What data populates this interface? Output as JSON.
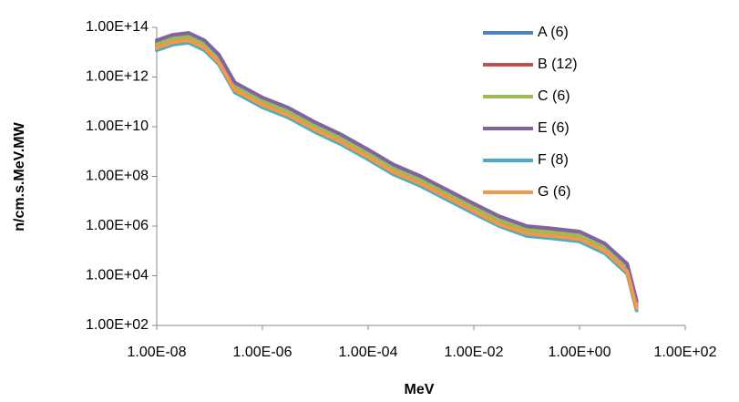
{
  "chart_data": {
    "type": "line",
    "x_label": "MeV",
    "y_label": "n/cm.s.MeV.MW",
    "x_scale": "log",
    "y_scale": "log",
    "grid": false,
    "legend": "right",
    "xlim": [
      1e-08,
      100
    ],
    "ylim": [
      100,
      100000000000000.0
    ],
    "xticks": [
      {
        "value": 1e-08,
        "label": "1.00E-08"
      },
      {
        "value": 1e-06,
        "label": "1.00E-06"
      },
      {
        "value": 0.0001,
        "label": "1.00E-04"
      },
      {
        "value": 0.01,
        "label": "1.00E-02"
      },
      {
        "value": 1,
        "label": "1.00E+00"
      },
      {
        "value": 100,
        "label": "1.00E+02"
      }
    ],
    "yticks": [
      {
        "value": 100,
        "label": "1.00E+02"
      },
      {
        "value": 10000.0,
        "label": "1.00E+04"
      },
      {
        "value": 1000000.0,
        "label": "1.00E+06"
      },
      {
        "value": 100000000.0,
        "label": "1.00E+08"
      },
      {
        "value": 10000000000.0,
        "label": "1.00E+10"
      },
      {
        "value": 1000000000000.0,
        "label": "1.00E+12"
      },
      {
        "value": 100000000000000.0,
        "label": "1.00E+14"
      }
    ],
    "x": [
      1e-08,
      2e-08,
      4e-08,
      8e-08,
      1.5e-07,
      3e-07,
      1e-06,
      3e-06,
      1e-05,
      3e-05,
      0.0001,
      0.0003,
      0.001,
      0.003,
      0.01,
      0.03,
      0.1,
      0.3,
      1,
      3,
      8,
      12
    ],
    "series": [
      {
        "name": "A (6)",
        "color": "#4f81bd",
        "values": [
          18000000000000.0,
          30000000000000.0,
          36000000000000.0,
          18000000000000.0,
          4800000000000.0,
          360000000000.0,
          90000000000.0,
          36000000000.0,
          9000000000.0,
          3000000000.0,
          720000000.0,
          180000000.0,
          60000000.0,
          18000000.0,
          4800000.0,
          1500000.0,
          600000.0,
          480000.0,
          360000.0,
          120000.0,
          18000.0,
          600
        ]
      },
      {
        "name": "B (12)",
        "color": "#c0504d",
        "values": [
          24000000000000.0,
          40000000000000.0,
          48000000000000.0,
          24000000000000.0,
          6400000000000.0,
          480000000000.0,
          120000000000.0,
          48000000000.0,
          12000000000.0,
          4000000000.0,
          960000000.0,
          240000000.0,
          80000000.0,
          24000000.0,
          6400000.0,
          2000000.0,
          800000.0,
          640000.0,
          480000.0,
          160000.0,
          24000.0,
          800
        ]
      },
      {
        "name": "C (6)",
        "color": "#9bbb59",
        "values": [
          21000000000000.0,
          35000000000000.0,
          42000000000000.0,
          21000000000000.0,
          5600000000000.0,
          420000000000.0,
          105000000000.0,
          42000000000.0,
          10500000000.0,
          3500000000.0,
          840000000.0,
          210000000.0,
          70000000.0,
          21000000.0,
          5600000.0,
          1750000.0,
          700000.0,
          560000.0,
          420000.0,
          140000.0,
          21000.0,
          700
        ]
      },
      {
        "name": "E (6)",
        "color": "#8064a2",
        "values": [
          30000000000000.0,
          50000000000000.0,
          60000000000000.0,
          30000000000000.0,
          8000000000000.0,
          600000000000.0,
          150000000000.0,
          60000000000.0,
          15000000000.0,
          5000000000.0,
          1200000000.0,
          300000000.0,
          100000000.0,
          30000000.0,
          8000000.0,
          2500000.0,
          1000000.0,
          800000.0,
          600000.0,
          200000.0,
          30000.0,
          1000
        ]
      },
      {
        "name": "F (8)",
        "color": "#4bacc6",
        "values": [
          12000000000000.0,
          20000000000000.0,
          24000000000000.0,
          12000000000000.0,
          3200000000000.0,
          240000000000.0,
          60000000000.0,
          24000000000.0,
          6000000000.0,
          2000000000.0,
          480000000.0,
          120000000.0,
          40000000.0,
          12000000.0,
          3200000.0,
          1000000.0,
          400000.0,
          320000.0,
          240000.0,
          80000.0,
          12000.0,
          400
        ]
      },
      {
        "name": "G (6)",
        "color": "#f79646",
        "values": [
          15000000000000.0,
          25000000000000.0,
          30000000000000.0,
          15000000000000.0,
          4000000000000.0,
          300000000000.0,
          75000000000.0,
          30000000000.0,
          7500000000.0,
          2500000000.0,
          600000000.0,
          150000000.0,
          50000000.0,
          15000000.0,
          4000000.0,
          1200000.0,
          500000.0,
          400000.0,
          300000.0,
          100000.0,
          15000.0,
          500
        ]
      }
    ]
  }
}
